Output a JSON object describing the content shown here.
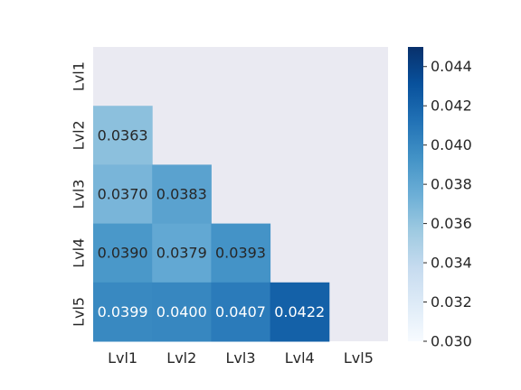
{
  "chart_data": {
    "type": "heatmap",
    "title": "",
    "xlabel": "",
    "ylabel": "",
    "x_categories": [
      "Lvl1",
      "Lvl2",
      "Lvl3",
      "Lvl4",
      "Lvl5"
    ],
    "y_categories": [
      "Lvl1",
      "Lvl2",
      "Lvl3",
      "Lvl4",
      "Lvl5"
    ],
    "mask": "upper-triangle-including-diagonal",
    "values": [
      [
        null,
        null,
        null,
        null,
        null
      ],
      [
        0.0363,
        null,
        null,
        null,
        null
      ],
      [
        0.037,
        0.0383,
        null,
        null,
        null
      ],
      [
        0.039,
        0.0379,
        0.0393,
        null,
        null
      ],
      [
        0.0399,
        0.04,
        0.0407,
        0.0422,
        null
      ]
    ],
    "cell_labels": [
      [
        null,
        null,
        null,
        null,
        null
      ],
      [
        "0.0363",
        null,
        null,
        null,
        null
      ],
      [
        "0.0370",
        "0.0383",
        null,
        null,
        null
      ],
      [
        "0.0390",
        "0.0379",
        "0.0393",
        null,
        null
      ],
      [
        "0.0399",
        "0.0400",
        "0.0407",
        "0.0422",
        null
      ]
    ],
    "colorbar": {
      "min": 0.03,
      "max": 0.045,
      "ticks": [
        0.03,
        0.032,
        0.034,
        0.036,
        0.038,
        0.04,
        0.042,
        0.044
      ],
      "tick_labels": [
        "0.030",
        "0.032",
        "0.034",
        "0.036",
        "0.038",
        "0.040",
        "0.042",
        "0.044"
      ],
      "colormap": "Blues",
      "position": "right"
    },
    "background_color": "#eaeaf2",
    "grid": false
  }
}
